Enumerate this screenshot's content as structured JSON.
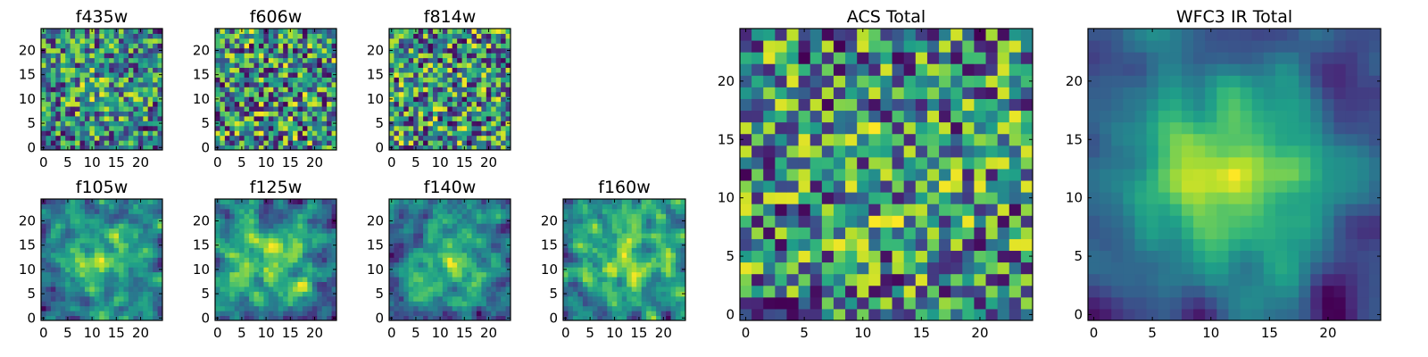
{
  "chart_data": [
    {
      "type": "heatmap",
      "title": "f435w",
      "grid_size": 25,
      "xticks": [
        0,
        5,
        10,
        15,
        20
      ],
      "yticks": [
        0,
        5,
        10,
        15,
        20
      ],
      "xlim": [
        -0.5,
        24.5
      ],
      "ylim": [
        -0.5,
        24.5
      ],
      "colormap": "viridis",
      "seed": 11,
      "smooth": 0,
      "center_boost": 0.15
    },
    {
      "type": "heatmap",
      "title": "f606w",
      "grid_size": 25,
      "xticks": [
        0,
        5,
        10,
        15,
        20
      ],
      "yticks": [
        0,
        5,
        10,
        15,
        20
      ],
      "xlim": [
        -0.5,
        24.5
      ],
      "ylim": [
        -0.5,
        24.5
      ],
      "colormap": "viridis",
      "seed": 23,
      "smooth": 0,
      "center_boost": 0.0
    },
    {
      "type": "heatmap",
      "title": "f814w",
      "grid_size": 25,
      "xticks": [
        0,
        5,
        10,
        15,
        20
      ],
      "yticks": [
        0,
        5,
        10,
        15,
        20
      ],
      "xlim": [
        -0.5,
        24.5
      ],
      "ylim": [
        -0.5,
        24.5
      ],
      "colormap": "viridis",
      "seed": 37,
      "smooth": 0,
      "center_boost": 0.0
    },
    {
      "type": "heatmap",
      "title": "f105w",
      "grid_size": 25,
      "xticks": [
        0,
        5,
        10,
        15,
        20
      ],
      "yticks": [
        0,
        5,
        10,
        15,
        20
      ],
      "xlim": [
        -0.5,
        24.5
      ],
      "ylim": [
        -0.5,
        24.5
      ],
      "colormap": "viridis",
      "seed": 41,
      "smooth": 1,
      "center_boost": 0.35
    },
    {
      "type": "heatmap",
      "title": "f125w",
      "grid_size": 25,
      "xticks": [
        0,
        5,
        10,
        15,
        20
      ],
      "yticks": [
        0,
        5,
        10,
        15,
        20
      ],
      "xlim": [
        -0.5,
        24.5
      ],
      "ylim": [
        -0.5,
        24.5
      ],
      "colormap": "viridis",
      "seed": 53,
      "smooth": 1,
      "center_boost": 0.3
    },
    {
      "type": "heatmap",
      "title": "f140w",
      "grid_size": 25,
      "xticks": [
        0,
        5,
        10,
        15,
        20
      ],
      "yticks": [
        0,
        5,
        10,
        15,
        20
      ],
      "xlim": [
        -0.5,
        24.5
      ],
      "ylim": [
        -0.5,
        24.5
      ],
      "colormap": "viridis",
      "seed": 67,
      "smooth": 1,
      "center_boost": 0.35
    },
    {
      "type": "heatmap",
      "title": "f160w",
      "grid_size": 25,
      "xticks": [
        0,
        5,
        10,
        15,
        20
      ],
      "yticks": [
        0,
        5,
        10,
        15,
        20
      ],
      "xlim": [
        -0.5,
        24.5
      ],
      "ylim": [
        -0.5,
        24.5
      ],
      "colormap": "viridis",
      "seed": 79,
      "smooth": 1,
      "center_boost": 0.3
    },
    {
      "type": "heatmap",
      "title": "ACS Total",
      "grid_size": 25,
      "xticks": [
        0,
        5,
        10,
        15,
        20
      ],
      "yticks": [
        0,
        5,
        10,
        15,
        20
      ],
      "xlim": [
        -0.5,
        24.5
      ],
      "ylim": [
        -0.5,
        24.5
      ],
      "colormap": "viridis",
      "seed": 97,
      "smooth": 0,
      "center_boost": 0.05
    },
    {
      "type": "heatmap",
      "title": "WFC3 IR Total",
      "grid_size": 25,
      "xticks": [
        0,
        5,
        10,
        15,
        20
      ],
      "yticks": [
        0,
        5,
        10,
        15,
        20
      ],
      "xlim": [
        -0.5,
        24.5
      ],
      "ylim": [
        -0.5,
        24.5
      ],
      "colormap": "viridis",
      "seed": 131,
      "smooth": 2,
      "center_boost": 0.6
    }
  ]
}
